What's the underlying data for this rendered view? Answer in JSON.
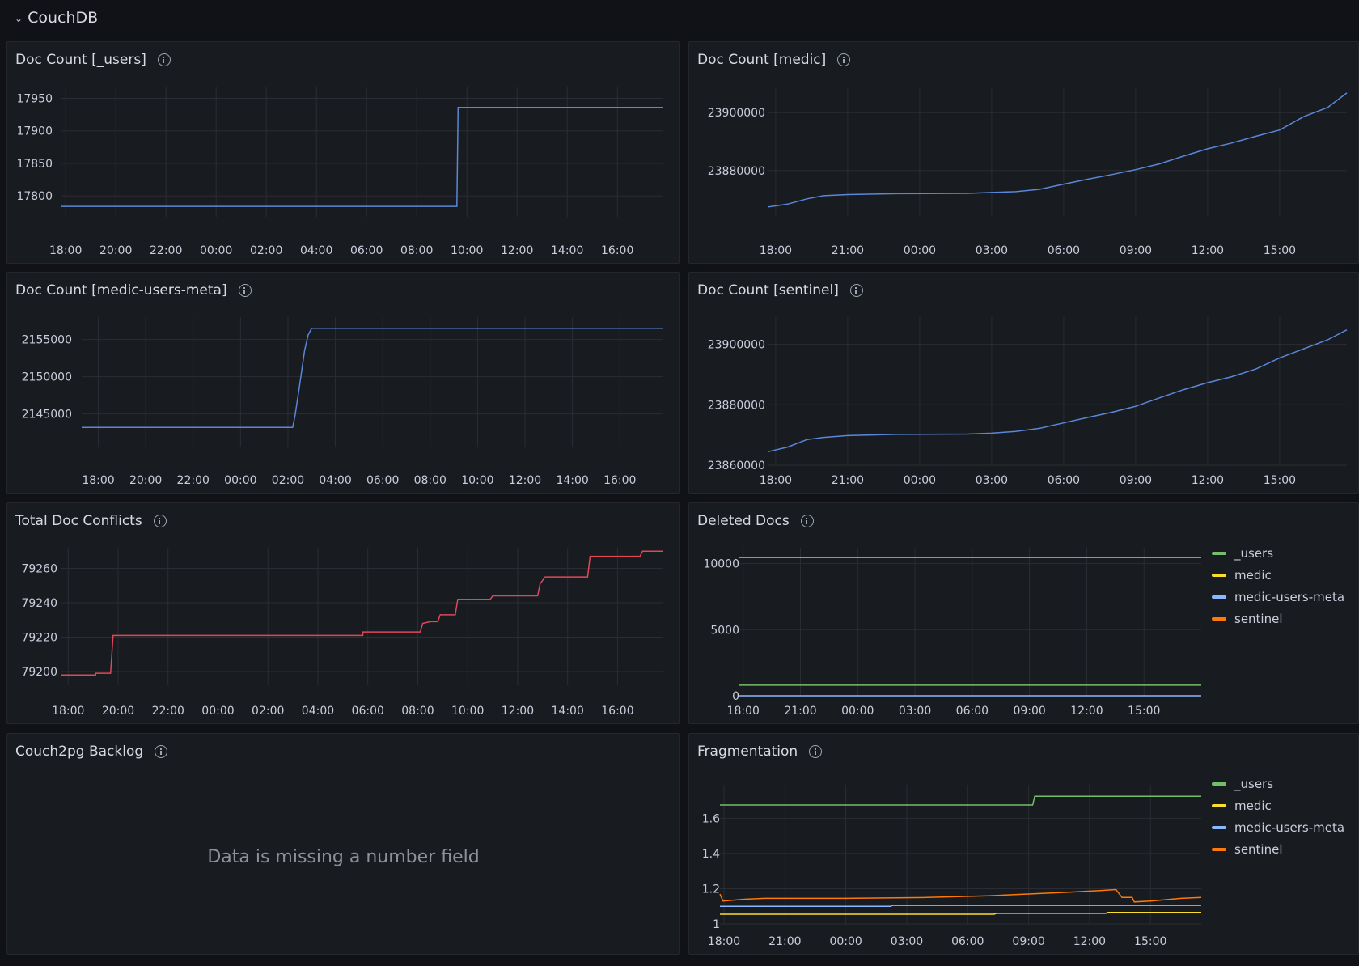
{
  "row": {
    "title": "CouchDB"
  },
  "colors": {
    "blue": "#5a87d8",
    "red": "#e04858",
    "green": "#73bf69",
    "yellow": "#fade2a",
    "lightblue": "#8ab8ff",
    "orange": "#ff780a"
  },
  "panels": [
    {
      "title": "Doc Count [_users]",
      "chart_data": {
        "type": "line",
        "x_ticks": [
          "18:00",
          "20:00",
          "22:00",
          "00:00",
          "02:00",
          "04:00",
          "06:00",
          "08:00",
          "10:00",
          "12:00",
          "14:00",
          "16:00"
        ],
        "y_ticks": [
          17800,
          17850,
          17900,
          17950
        ],
        "ylim": [
          17768,
          17968
        ],
        "xlim": [
          -0.2,
          23.8
        ],
        "series": [
          {
            "color": "#5a87d8",
            "points": [
              [
                -0.2,
                17784
              ],
              [
                15.6,
                17784
              ],
              [
                15.65,
                17936
              ],
              [
                23.8,
                17936
              ]
            ]
          }
        ]
      }
    },
    {
      "title": "Doc Count [medic]",
      "chart_data": {
        "type": "line",
        "x_ticks": [
          "18:00",
          "21:00",
          "00:00",
          "03:00",
          "06:00",
          "09:00",
          "12:00",
          "15:00"
        ],
        "y_ticks": [
          23880000,
          23900000
        ],
        "ylim": [
          23864000,
          23909000
        ],
        "xlim": [
          -0.3,
          23.8
        ],
        "series": [
          {
            "color": "#5a87d8",
            "points": [
              [
                -0.3,
                23867400
              ],
              [
                0.5,
                23868400
              ],
              [
                1.3,
                23870200
              ],
              [
                2,
                23871300
              ],
              [
                3,
                23871700
              ],
              [
                5,
                23872000
              ],
              [
                8,
                23872100
              ],
              [
                9,
                23872400
              ],
              [
                10,
                23872700
              ],
              [
                11,
                23873500
              ],
              [
                12,
                23875300
              ],
              [
                13,
                23877000
              ],
              [
                14,
                23878600
              ],
              [
                15,
                23880300
              ],
              [
                16,
                23882300
              ],
              [
                17,
                23885000
              ],
              [
                18,
                23887500
              ],
              [
                19,
                23889500
              ],
              [
                20,
                23891800
              ],
              [
                21,
                23894000
              ],
              [
                22,
                23898600
              ],
              [
                23,
                23901800
              ],
              [
                23.8,
                23906800
              ]
            ]
          }
        ]
      }
    },
    {
      "title": "Doc Count [medic-users-meta]",
      "chart_data": {
        "type": "line",
        "x_ticks": [
          "18:00",
          "20:00",
          "22:00",
          "00:00",
          "02:00",
          "04:00",
          "06:00",
          "08:00",
          "10:00",
          "12:00",
          "14:00",
          "16:00"
        ],
        "y_ticks": [
          2145000,
          2150000,
          2155000
        ],
        "ylim": [
          2140500,
          2158000
        ],
        "xlim": [
          -0.7,
          23.8
        ],
        "series": [
          {
            "color": "#5a87d8",
            "points": [
              [
                -0.7,
                2143200
              ],
              [
                8.2,
                2143200
              ],
              [
                8.3,
                2144800
              ],
              [
                8.5,
                2149000
              ],
              [
                8.7,
                2153500
              ],
              [
                8.85,
                2155600
              ],
              [
                9.0,
                2156500
              ],
              [
                23.8,
                2156500
              ]
            ]
          }
        ]
      }
    },
    {
      "title": "Doc Count [sentinel]",
      "chart_data": {
        "type": "line",
        "x_ticks": [
          "18:00",
          "21:00",
          "00:00",
          "03:00",
          "06:00",
          "09:00",
          "12:00",
          "15:00"
        ],
        "y_ticks": [
          23860000,
          23880000,
          23900000
        ],
        "ylim": [
          23860000,
          23909000
        ],
        "xlim": [
          -0.3,
          23.8
        ],
        "series": [
          {
            "color": "#5a87d8",
            "points": [
              [
                -0.3,
                23864500
              ],
              [
                0.5,
                23866000
              ],
              [
                1.3,
                23868500
              ],
              [
                2,
                23869200
              ],
              [
                3,
                23869800
              ],
              [
                5,
                23870200
              ],
              [
                8,
                23870300
              ],
              [
                9,
                23870600
              ],
              [
                10,
                23871200
              ],
              [
                11,
                23872200
              ],
              [
                12,
                23874000
              ],
              [
                13,
                23875800
              ],
              [
                14,
                23877500
              ],
              [
                15,
                23879500
              ],
              [
                16,
                23882300
              ],
              [
                17,
                23885000
              ],
              [
                18,
                23887300
              ],
              [
                19,
                23889300
              ],
              [
                20,
                23891800
              ],
              [
                21,
                23895500
              ],
              [
                22,
                23898500
              ],
              [
                23,
                23901500
              ],
              [
                23.8,
                23904800
              ]
            ]
          }
        ]
      }
    },
    {
      "title": "Total Doc Conflicts",
      "chart_data": {
        "type": "line",
        "x_ticks": [
          "18:00",
          "20:00",
          "22:00",
          "00:00",
          "02:00",
          "04:00",
          "06:00",
          "08:00",
          "10:00",
          "12:00",
          "14:00",
          "16:00"
        ],
        "y_ticks": [
          79200,
          79220,
          79240,
          79260
        ],
        "ylim": [
          79192,
          79272
        ],
        "xlim": [
          -0.3,
          23.8
        ],
        "series": [
          {
            "color": "#e04858",
            "points": [
              [
                -0.3,
                79198
              ],
              [
                1.1,
                79198
              ],
              [
                1.1,
                79199
              ],
              [
                1.7,
                79199
              ],
              [
                1.8,
                79221
              ],
              [
                11.8,
                79221
              ],
              [
                11.8,
                79223
              ],
              [
                14.1,
                79223
              ],
              [
                14.2,
                79228
              ],
              [
                14.5,
                79229
              ],
              [
                14.8,
                79229
              ],
              [
                14.9,
                79233
              ],
              [
                15.5,
                79233
              ],
              [
                15.6,
                79242
              ],
              [
                16.9,
                79242
              ],
              [
                17,
                79244
              ],
              [
                18.8,
                79244
              ],
              [
                18.9,
                79251
              ],
              [
                19.1,
                79255
              ],
              [
                20.8,
                79255
              ],
              [
                20.9,
                79267
              ],
              [
                22.9,
                79267
              ],
              [
                23,
                79270
              ],
              [
                23.8,
                79270
              ]
            ]
          }
        ]
      }
    },
    {
      "title": "Deleted Docs",
      "chart_data": {
        "type": "line",
        "x_ticks": [
          "18:00",
          "21:00",
          "00:00",
          "03:00",
          "06:00",
          "09:00",
          "12:00",
          "15:00"
        ],
        "y_ticks": [
          0,
          5000,
          10000
        ],
        "ylim": [
          0,
          11200
        ],
        "xlim": [
          -0.2,
          24
        ],
        "series": [
          {
            "name": "_users",
            "color": "#73bf69",
            "points": [
              [
                -0.2,
                800
              ],
              [
                24,
                800
              ]
            ]
          },
          {
            "name": "medic",
            "color": "#fade2a",
            "points": [
              [
                -0.2,
                10450
              ],
              [
                24,
                10450
              ]
            ]
          },
          {
            "name": "medic-users-meta",
            "color": "#8ab8ff",
            "points": [
              [
                -0.2,
                0
              ],
              [
                24,
                0
              ]
            ]
          },
          {
            "name": "sentinel",
            "color": "#ff780a",
            "points": [
              [
                -0.2,
                10450
              ],
              [
                24,
                10450
              ]
            ]
          }
        ]
      }
    },
    {
      "title": "Couch2pg Backlog",
      "message": "Data is missing a number field"
    },
    {
      "title": "Fragmentation",
      "chart_data": {
        "type": "line",
        "x_ticks": [
          "18:00",
          "21:00",
          "00:00",
          "03:00",
          "06:00",
          "09:00",
          "12:00",
          "15:00"
        ],
        "y_ticks": [
          1,
          1.2,
          1.4,
          1.6
        ],
        "ylim": [
          1,
          1.79
        ],
        "xlim": [
          -0.2,
          23.5
        ],
        "series": [
          {
            "name": "_users",
            "color": "#73bf69",
            "points": [
              [
                -0.2,
                1.675
              ],
              [
                15.2,
                1.675
              ],
              [
                15.3,
                1.725
              ],
              [
                23.5,
                1.725
              ]
            ]
          },
          {
            "name": "medic",
            "color": "#fade2a",
            "points": [
              [
                -0.2,
                1.055
              ],
              [
                13.3,
                1.055
              ],
              [
                13.4,
                1.06
              ],
              [
                18.8,
                1.06
              ],
              [
                18.9,
                1.065
              ],
              [
                23.5,
                1.065
              ]
            ]
          },
          {
            "name": "medic-users-meta",
            "color": "#8ab8ff",
            "points": [
              [
                -0.2,
                1.1
              ],
              [
                8.2,
                1.1
              ],
              [
                8.3,
                1.105
              ],
              [
                23.5,
                1.105
              ]
            ]
          },
          {
            "name": "sentinel",
            "color": "#ff780a",
            "points": [
              [
                -0.2,
                1.17
              ],
              [
                -0.05,
                1.13
              ],
              [
                1,
                1.14
              ],
              [
                2,
                1.145
              ],
              [
                6,
                1.145
              ],
              [
                10,
                1.15
              ],
              [
                13,
                1.16
              ],
              [
                15,
                1.17
              ],
              [
                17,
                1.18
              ],
              [
                18.6,
                1.19
              ],
              [
                19.3,
                1.195
              ],
              [
                19.6,
                1.15
              ],
              [
                20.1,
                1.15
              ],
              [
                20.2,
                1.125
              ],
              [
                21,
                1.13
              ],
              [
                22.5,
                1.145
              ],
              [
                23.5,
                1.15
              ]
            ]
          }
        ]
      }
    }
  ]
}
